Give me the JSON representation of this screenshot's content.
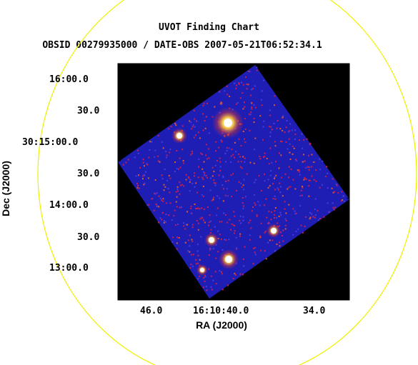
{
  "chart_data": {
    "type": "image",
    "title": "UVOT Finding Chart",
    "subtitle": "OBSID 00279935000 / DATE-OBS 2007-05-21T06:52:34.1",
    "xlabel": "RA (J2000)",
    "ylabel": "Dec (J2000)",
    "x_ticks": [
      "46.0",
      "16:10:40.0",
      "34.0"
    ],
    "y_ticks": [
      "16:00.0",
      "30.0",
      "30:15:00.0",
      "30.0",
      "14:00.0",
      "30.0",
      "13:00.0"
    ],
    "grid": false,
    "colors": {
      "background": "#000000",
      "field": "#1e1eb4",
      "noise_hot": "#c81e50",
      "circle": "#f0f000"
    }
  }
}
